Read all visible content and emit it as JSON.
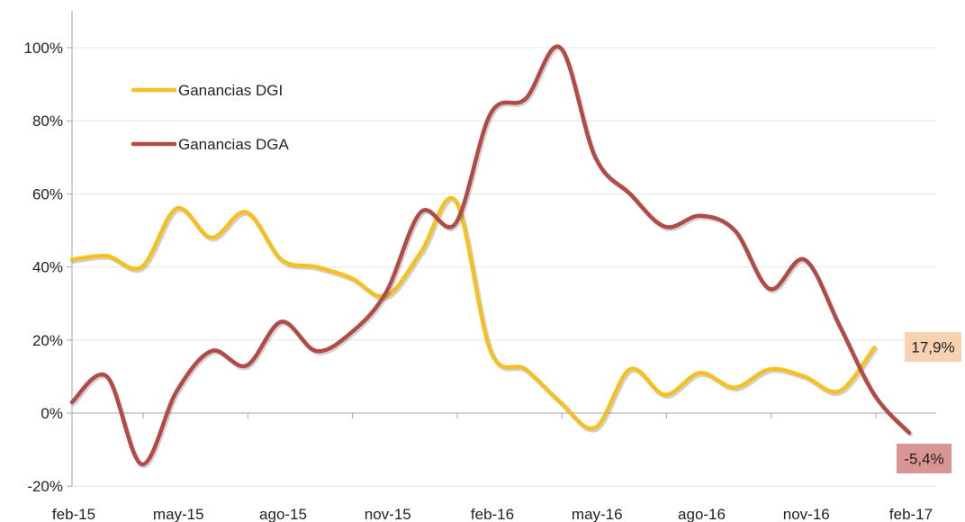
{
  "chart_data": {
    "type": "line",
    "title": "",
    "xlabel": "",
    "ylabel": "",
    "x": [
      "feb-15",
      "mar-15",
      "abr-15",
      "may-15",
      "jun-15",
      "jul-15",
      "ago-15",
      "sep-15",
      "oct-15",
      "nov-15",
      "dic-15",
      "ene-16",
      "feb-16",
      "mar-16",
      "abr-16",
      "may-16",
      "jun-16",
      "jul-16",
      "ago-16",
      "sep-16",
      "oct-16",
      "nov-16",
      "dic-16",
      "ene-17",
      "feb-17"
    ],
    "x_tick_labels": [
      "feb-15",
      "may-15",
      "ago-15",
      "nov-15",
      "feb-16",
      "may-16",
      "ago-16",
      "nov-16",
      "feb-17"
    ],
    "y_tick_labels": [
      "100%",
      "80%",
      "60%",
      "40%",
      "20%",
      "0%",
      "-20%"
    ],
    "ylim": [
      -20,
      100
    ],
    "y_unit": "%",
    "grid": true,
    "legend_position": "top-left",
    "series": [
      {
        "name": "Ganancias DGI",
        "color": "#F5C022",
        "values": [
          42,
          43,
          40,
          56,
          48,
          55,
          42,
          40,
          37,
          32,
          44,
          58,
          17,
          12,
          3,
          -4,
          12,
          5,
          11,
          7,
          12,
          10,
          6,
          17.9,
          null
        ]
      },
      {
        "name": "Ganancias DGA",
        "color": "#B24A47",
        "values": [
          3,
          10,
          -14,
          6,
          17,
          13,
          25,
          17,
          22,
          33,
          55,
          52,
          82,
          86,
          100,
          70,
          60,
          51,
          54,
          50,
          34,
          42,
          24,
          5,
          -5.4
        ]
      }
    ],
    "annotations": [
      {
        "text": "17,9%",
        "series": "Ganancias DGI",
        "background": "#F8D2B0"
      },
      {
        "text": "-5,4%",
        "series": "Ganancias DGA",
        "background": "#D99593"
      }
    ]
  }
}
